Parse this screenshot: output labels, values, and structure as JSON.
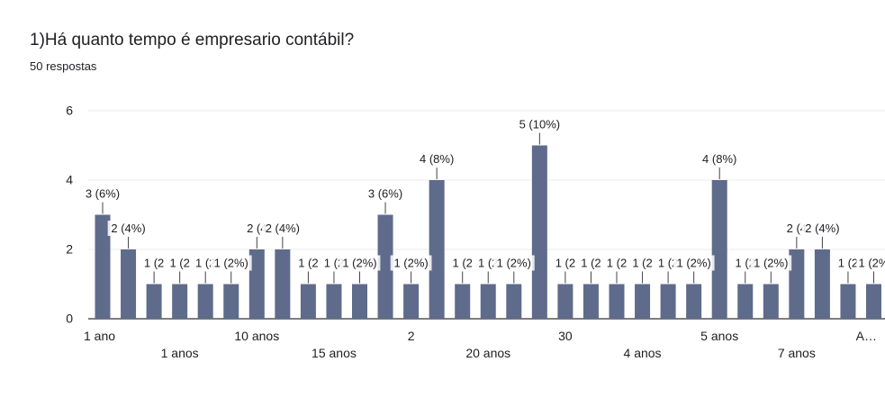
{
  "question": {
    "title": "1)Há quanto tempo é empresario contábil?",
    "subtitle": "50 respostas"
  },
  "chart_data": {
    "type": "bar",
    "ylim": [
      0,
      6
    ],
    "yticks": [
      "0",
      "2",
      "4",
      "6"
    ],
    "grid": true,
    "bar_color": "#5f6b8b",
    "gridline_color": "#ebebeb",
    "axis_color": "#333333",
    "values": [
      3,
      2,
      1,
      1,
      1,
      1,
      2,
      2,
      1,
      1,
      1,
      3,
      1,
      4,
      1,
      1,
      1,
      5,
      1,
      1,
      1,
      1,
      1,
      1,
      4,
      1,
      1,
      2,
      2,
      1,
      1
    ],
    "data_labels": [
      "3 (6%)",
      "2 (4%)",
      "1 (2",
      "1 (2",
      "1 (2",
      "1 (2%)",
      "2 (4",
      "2 (4%)",
      "1 (2",
      "1 (2",
      "1 (2%)",
      "3 (6%)",
      "1 (2%)",
      "4 (8%)",
      "1 (2",
      "1 (2",
      "1 (2%)",
      "5 (10%)",
      "1 (2",
      "1 (2",
      "1 (2",
      "1 (2",
      "1 (2",
      "1 (2%)",
      "4 (8%)",
      "1 (2",
      "1 (2%)",
      "2 (4",
      "2 (4%)",
      "1 (2",
      "1 (2%"
    ],
    "x_tick_labels": [
      {
        "index": 0,
        "text": "1 ano",
        "row": 1
      },
      {
        "index": 3,
        "text": "1 anos",
        "row": 2
      },
      {
        "index": 6,
        "text": "10 anos",
        "row": 1
      },
      {
        "index": 9,
        "text": "15 anos",
        "row": 2
      },
      {
        "index": 12,
        "text": "2",
        "row": 1
      },
      {
        "index": 15,
        "text": "20 anos",
        "row": 2
      },
      {
        "index": 18,
        "text": "30",
        "row": 1
      },
      {
        "index": 21,
        "text": "4 anos",
        "row": 2
      },
      {
        "index": 24,
        "text": "5 anos",
        "row": 1
      },
      {
        "index": 27,
        "text": "7 anos",
        "row": 2
      },
      {
        "index": 30,
        "text": "A…",
        "row": 1
      }
    ]
  }
}
